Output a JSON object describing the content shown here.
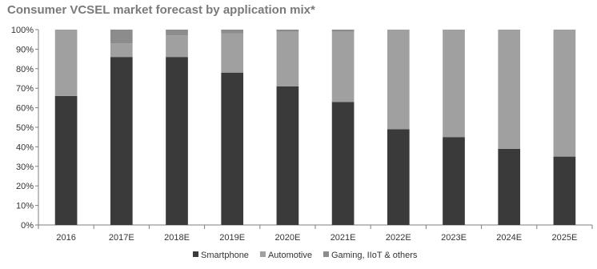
{
  "chart_data": {
    "type": "bar",
    "stacked": true,
    "title": "Consumer VCSEL market forecast by application mix*",
    "xlabel": "",
    "ylabel": "",
    "ylim": [
      0,
      100
    ],
    "y_ticks": [
      "0%",
      "10%",
      "20%",
      "30%",
      "40%",
      "50%",
      "60%",
      "70%",
      "80%",
      "90%",
      "100%"
    ],
    "grid": false,
    "legend_position": "bottom",
    "categories": [
      "2016",
      "2017E",
      "2018E",
      "2019E",
      "2020E",
      "2021E",
      "2022E",
      "2023E",
      "2024E",
      "2025E"
    ],
    "series": [
      {
        "name": "Smartphone",
        "color": "#3a3a3a",
        "values": [
          66,
          86,
          86,
          78,
          71,
          63,
          49,
          45,
          39,
          35
        ]
      },
      {
        "name": "Automotive",
        "color": "#a0a0a0",
        "values": [
          34,
          7,
          11,
          20,
          28,
          36,
          51,
          55,
          61,
          65
        ]
      },
      {
        "name": "Gaming, IIoT & others",
        "color": "#8c8c8c",
        "values": [
          0,
          7,
          3,
          2,
          1,
          1,
          0,
          0,
          0,
          0
        ]
      }
    ]
  }
}
